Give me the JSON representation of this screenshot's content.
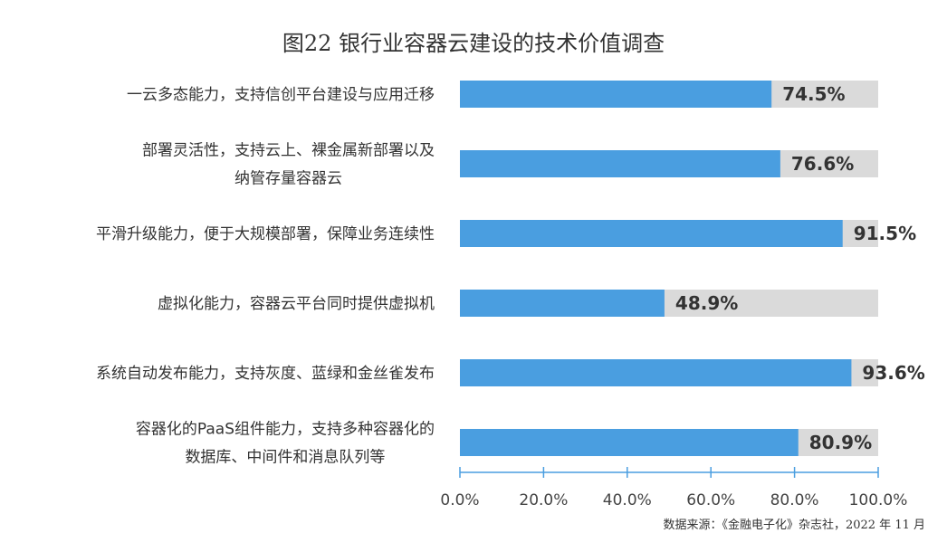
{
  "chart_data": {
    "type": "bar",
    "orientation": "horizontal",
    "title": "图22 银行业容器云建设的技术价值调查",
    "categories": [
      [
        "一云多态能力，支持信创平台建设与应用迁移"
      ],
      [
        "部署灵活性，支持云上、裸金属新部署以及",
        "纳管存量容器云"
      ],
      [
        "平滑升级能力，便于大规模部署，保障业务连续性"
      ],
      [
        "虚拟化能力，容器云平台同时提供虚拟机"
      ],
      [
        "系统自动发布能力，支持灰度、蓝绿和金丝雀发布"
      ],
      [
        "容器化的PaaS组件能力，支持多种容器化的",
        "数据库、中间件和消息队列等"
      ]
    ],
    "values": [
      74.5,
      76.6,
      91.5,
      48.9,
      93.6,
      80.9
    ],
    "value_labels": [
      "74.5%",
      "76.6%",
      "91.5%",
      "48.9%",
      "93.6%",
      "80.9%"
    ],
    "xlim": [
      0,
      100
    ],
    "x_ticks": [
      0,
      20,
      40,
      60,
      80,
      100
    ],
    "x_tick_labels": [
      "0.0%",
      "20.0%",
      "40.0%",
      "60.0%",
      "80.0%",
      "100.0%"
    ],
    "grid": false,
    "bar_color": "#4a9ee0",
    "track_color": "#dadada",
    "axis_color": "#4a9ee0"
  },
  "source": "数据来源：《金融电子化》杂志社，2022 年 11 月"
}
